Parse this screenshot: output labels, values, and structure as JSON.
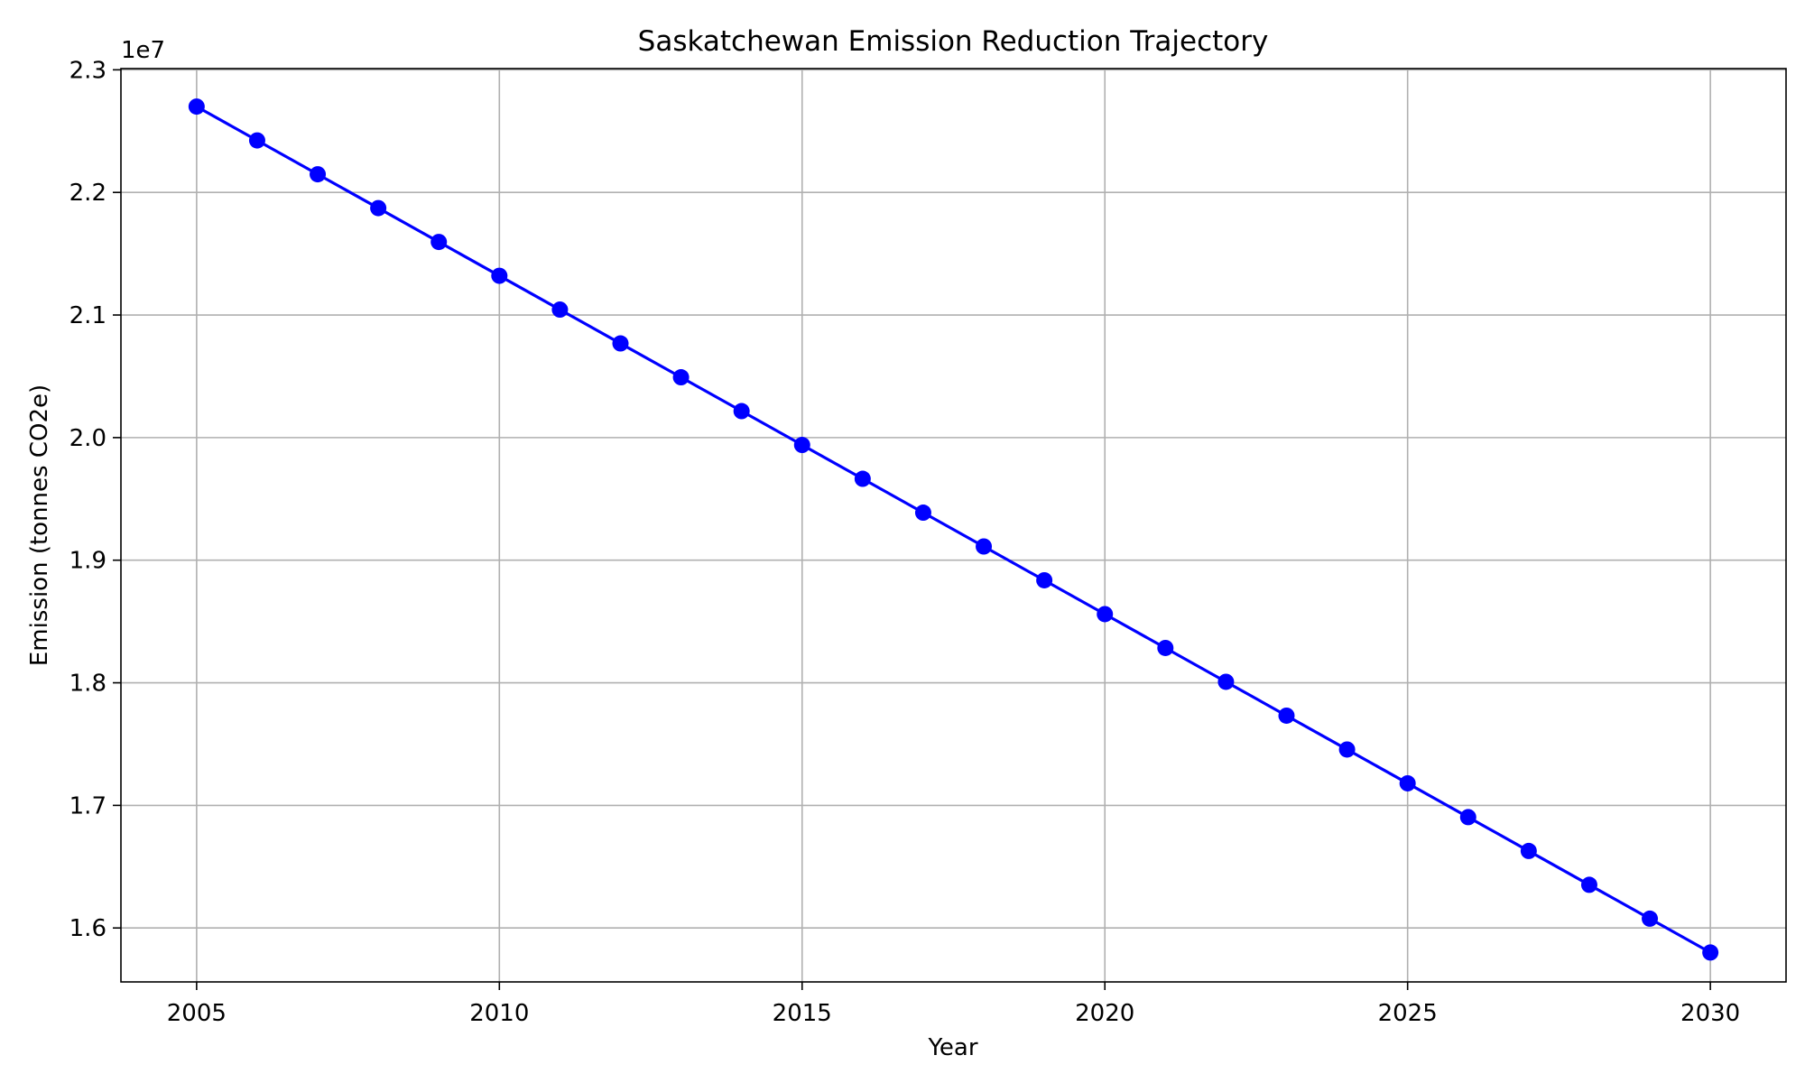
{
  "chart_data": {
    "type": "line",
    "title": "Saskatchewan Emission Reduction Trajectory",
    "xlabel": "Year",
    "ylabel": "Emission (tonnes CO2e)",
    "y_offset_label": "1e7",
    "y_scale": 10000000,
    "xlim": [
      2003.75,
      2031.25
    ],
    "ylim": [
      15560000,
      23010000
    ],
    "xticks": [
      2005,
      2010,
      2015,
      2020,
      2025,
      2030
    ],
    "yticks": [
      16000000,
      17000000,
      18000000,
      19000000,
      20000000,
      21000000,
      22000000,
      23000000
    ],
    "ytick_labels": [
      "1.6",
      "1.7",
      "1.8",
      "1.9",
      "2.0",
      "2.1",
      "2.2",
      "2.3"
    ],
    "grid": true,
    "series": [
      {
        "color": "#0000ff",
        "marker": "circle",
        "x": [
          2005,
          2006,
          2007,
          2008,
          2009,
          2010,
          2011,
          2012,
          2013,
          2014,
          2015,
          2016,
          2017,
          2018,
          2019,
          2020,
          2021,
          2022,
          2023,
          2024,
          2025,
          2026,
          2027,
          2028,
          2029,
          2030
        ],
        "y": [
          22700000,
          22424000,
          22148000,
          21872000,
          21596000,
          21320000,
          21044000,
          20768000,
          20492000,
          20216000,
          19940000,
          19664000,
          19388000,
          19112000,
          18836000,
          18560000,
          18284000,
          18008000,
          17732000,
          17456000,
          17180000,
          16904000,
          16628000,
          16352000,
          16076000,
          15800000
        ]
      }
    ]
  }
}
